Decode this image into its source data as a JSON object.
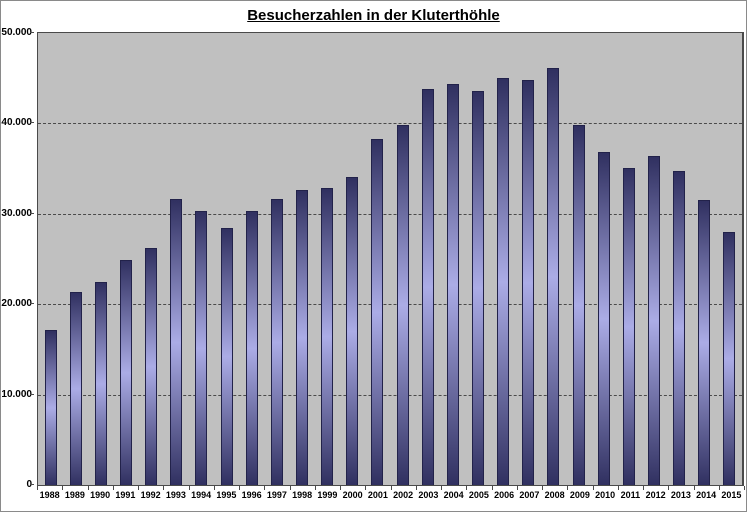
{
  "chart_data": {
    "type": "bar",
    "title": "Besucherzahlen in der Kluterthöhle",
    "xlabel": "",
    "ylabel": "",
    "categories": [
      "1988",
      "1989",
      "1990",
      "1991",
      "1992",
      "1993",
      "1994",
      "1995",
      "1996",
      "1997",
      "1998",
      "1999",
      "2000",
      "2001",
      "2002",
      "2003",
      "2004",
      "2005",
      "2006",
      "2007",
      "2008",
      "2009",
      "2010",
      "2011",
      "2012",
      "2013",
      "2014",
      "2015"
    ],
    "values": [
      17100,
      21300,
      22500,
      24900,
      26200,
      31600,
      30300,
      28400,
      30300,
      31600,
      32600,
      32900,
      34100,
      38300,
      39800,
      43800,
      44400,
      43600,
      45000,
      44800,
      46100,
      39800,
      36800,
      35100,
      36400,
      34700,
      31500,
      28000
    ],
    "ylim": [
      0,
      50000
    ],
    "y_tick_values": [
      0,
      10000,
      20000,
      30000,
      40000,
      50000
    ],
    "y_tick_labels": [
      "0",
      "10.000",
      "20.000",
      "30.000",
      "40.000",
      "50.000"
    ],
    "grid": "horizontal-dashed",
    "legend": "none",
    "colors": {
      "plot_background": "#c0c0c0",
      "bar_edge": "#303060",
      "bar_mid": "#abace6",
      "bar_outline": "#22224a",
      "gridline": "#4a4a4a",
      "text": "#000000"
    }
  }
}
